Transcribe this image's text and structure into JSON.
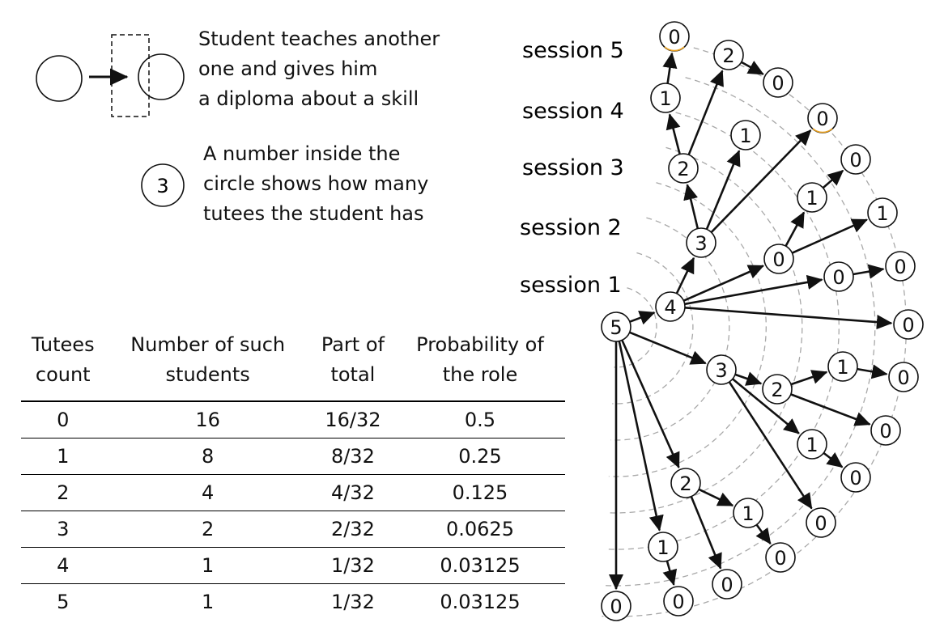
{
  "legend": {
    "arrow_lines": [
      "Student teaches another",
      "one and gives him",
      "a diploma about a skill"
    ],
    "circle_lines": [
      "A number inside the",
      "circle shows how many",
      "tutees the student has"
    ],
    "example_number": "3"
  },
  "sessions": [
    "session 5",
    "session 4",
    "session 3",
    "session 2",
    "session 1"
  ],
  "table": {
    "headers": [
      [
        "Tutees",
        "count"
      ],
      [
        "Number of such",
        "students"
      ],
      [
        "Part of",
        "total"
      ],
      [
        "Probability of",
        "the role"
      ]
    ],
    "rows": [
      [
        "0",
        "16",
        "16/32",
        "0.5"
      ],
      [
        "1",
        "8",
        "8/32",
        "0.25"
      ],
      [
        "2",
        "4",
        "4/32",
        "0.125"
      ],
      [
        "3",
        "2",
        "2/32",
        "0.0625"
      ],
      [
        "4",
        "1",
        "1/32",
        "0.03125"
      ],
      [
        "5",
        "1",
        "1/32",
        "0.03125"
      ]
    ]
  },
  "tree": {
    "node_labels": [
      "5",
      "4",
      "3",
      "2",
      "1",
      "0",
      "2",
      "1",
      "0",
      "0",
      "0",
      "1",
      "0",
      "1",
      "0",
      "0",
      "0",
      "3",
      "2",
      "1",
      "0",
      "0",
      "1",
      "0",
      "0",
      "2",
      "1",
      "0",
      "0",
      "1",
      "0",
      "0"
    ]
  },
  "colors": {
    "ink": "#111111",
    "ring": "#a8a8a8",
    "accent": "#e8a020"
  }
}
